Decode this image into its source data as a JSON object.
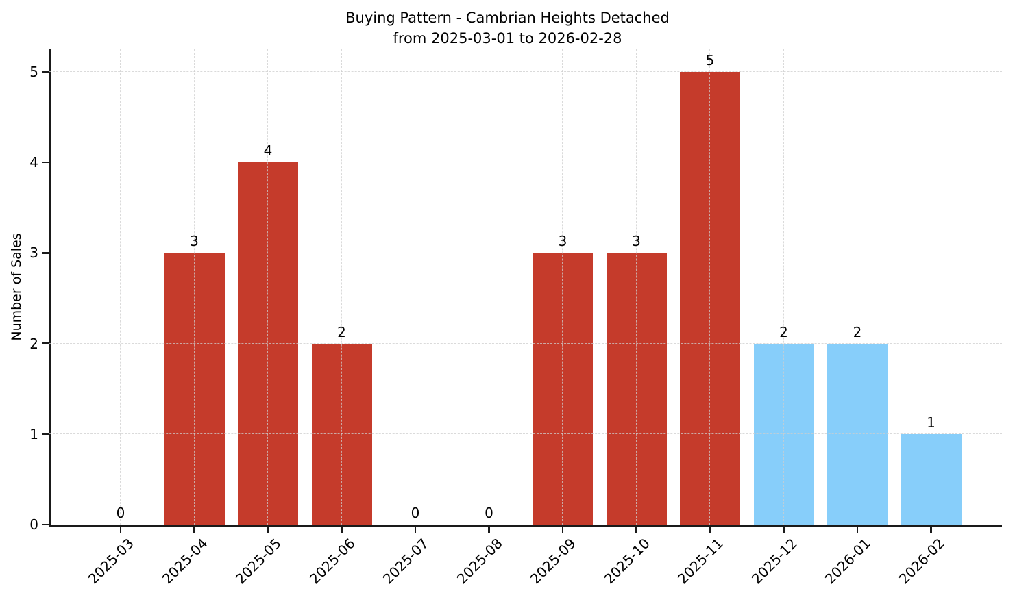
{
  "chart_data": {
    "type": "bar",
    "title": "Buying Pattern - Cambrian Heights Detached",
    "subtitle": "from 2025-03-01 to 2026-02-28",
    "categories": [
      "2025-03",
      "2025-04",
      "2025-05",
      "2025-06",
      "2025-07",
      "2025-08",
      "2025-09",
      "2025-10",
      "2025-11",
      "2025-12",
      "2026-01",
      "2026-02"
    ],
    "values": [
      0,
      3,
      4,
      2,
      0,
      0,
      3,
      3,
      5,
      2,
      2,
      1
    ],
    "bar_colors": [
      "#c53b2b",
      "#c53b2b",
      "#c53b2b",
      "#c53b2b",
      "#c53b2b",
      "#c53b2b",
      "#c53b2b",
      "#c53b2b",
      "#c53b2b",
      "#87cefa",
      "#87cefa",
      "#87cefa"
    ],
    "value_labels": [
      "0",
      "3",
      "4",
      "2",
      "0",
      "0",
      "3",
      "3",
      "5",
      "2",
      "2",
      "1"
    ],
    "xlabel": "",
    "ylabel": "Number of Sales",
    "yticks": [
      0,
      1,
      2,
      3,
      4,
      5
    ],
    "ylim": [
      0,
      5.25
    ],
    "grid": true,
    "grid_style": "dashed",
    "legend": null,
    "colors": {
      "past_months": "#c53b2b",
      "recent_months": "#87cefa",
      "axis": "#1a1a1a",
      "grid": "#d9d9d9"
    }
  }
}
